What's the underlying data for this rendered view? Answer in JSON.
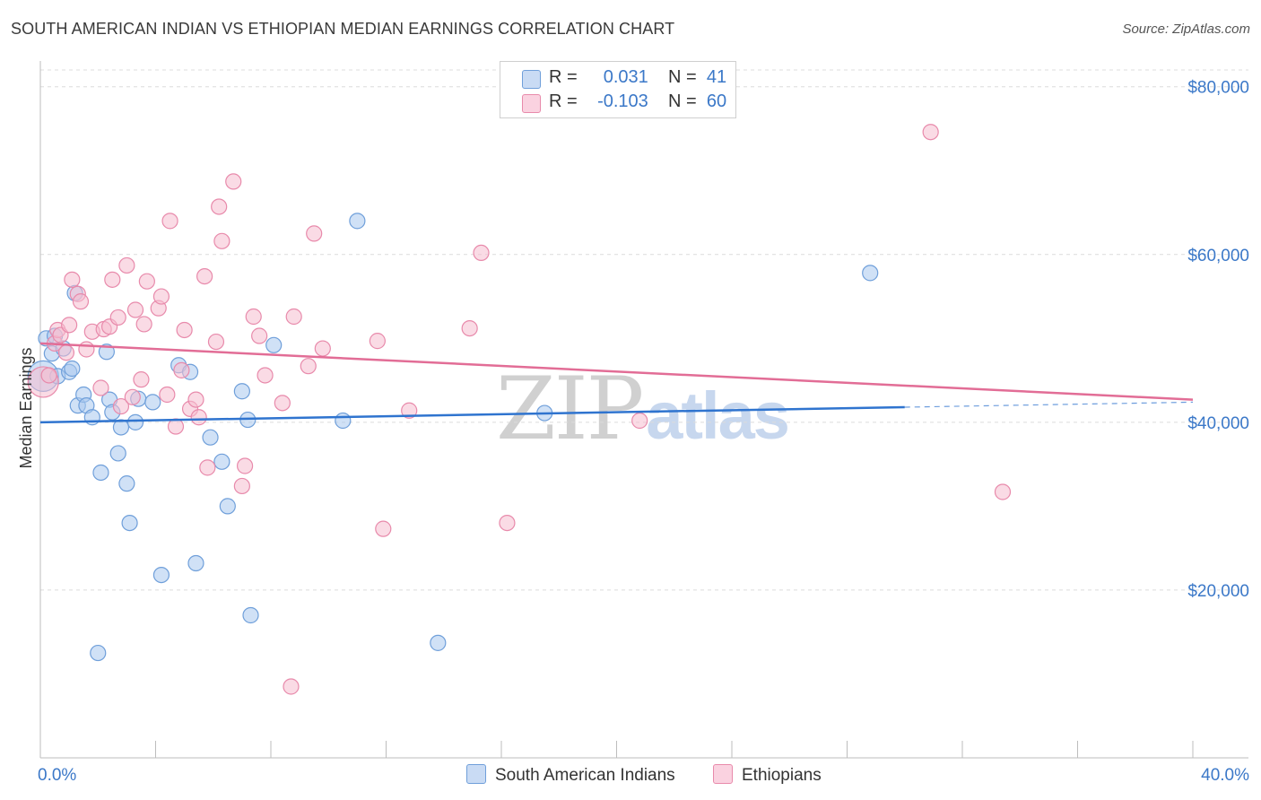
{
  "title": "SOUTH AMERICAN INDIAN VS ETHIOPIAN MEDIAN EARNINGS CORRELATION CHART",
  "source": "Source: ZipAtlas.com",
  "watermark": {
    "zip": "ZIP",
    "atlas": "atlas"
  },
  "legend": {
    "rows": [
      {
        "r_label": "R =",
        "r_value": "0.031",
        "n_label": "N =",
        "n_value": "41"
      },
      {
        "r_label": "R =",
        "r_value": "-0.103",
        "n_label": "N =",
        "n_value": "60"
      }
    ]
  },
  "colors": {
    "blue_fill": "#a9c8ee",
    "blue_stroke": "#6f9fda",
    "blue_line": "#2f74cf",
    "pink_fill": "#f6bdd0",
    "pink_stroke": "#e88aab",
    "pink_line": "#e26d96",
    "tick_text": "#3b78c8",
    "grid": "#dcdcdc"
  },
  "chart_data": {
    "type": "scatter",
    "title": "SOUTH AMERICAN INDIAN VS ETHIOPIAN MEDIAN EARNINGS CORRELATION CHART",
    "xlabel": "",
    "ylabel": "Median Earnings",
    "xlim": [
      0,
      40
    ],
    "ylim": [
      0,
      82000
    ],
    "x_tick_labels": [
      "0.0%",
      "40.0%"
    ],
    "y_ticks": [
      20000,
      40000,
      60000,
      80000
    ],
    "y_tick_labels": [
      "$20,000",
      "$40,000",
      "$60,000",
      "$80,000"
    ],
    "series": [
      {
        "name": "South American Indians",
        "color": "#a9c8ee",
        "R": 0.031,
        "N": 41,
        "points": [
          [
            0.1,
            45500
          ],
          [
            0.2,
            50000
          ],
          [
            0.4,
            48200
          ],
          [
            0.5,
            50300
          ],
          [
            0.6,
            45500
          ],
          [
            0.8,
            48800
          ],
          [
            1.0,
            46000
          ],
          [
            1.1,
            46400
          ],
          [
            1.2,
            55400
          ],
          [
            1.3,
            42000
          ],
          [
            1.5,
            43300
          ],
          [
            1.6,
            42000
          ],
          [
            1.8,
            40600
          ],
          [
            2.1,
            34000
          ],
          [
            2.3,
            48400
          ],
          [
            2.4,
            42700
          ],
          [
            2.5,
            41200
          ],
          [
            2.7,
            36300
          ],
          [
            2.8,
            39400
          ],
          [
            3.0,
            32700
          ],
          [
            3.1,
            28000
          ],
          [
            3.3,
            40000
          ],
          [
            3.4,
            42800
          ],
          [
            3.9,
            42400
          ],
          [
            4.2,
            21800
          ],
          [
            4.8,
            46800
          ],
          [
            5.2,
            46000
          ],
          [
            5.4,
            23200
          ],
          [
            5.9,
            38200
          ],
          [
            6.3,
            35300
          ],
          [
            6.5,
            30000
          ],
          [
            7.0,
            43700
          ],
          [
            7.2,
            40300
          ],
          [
            7.3,
            17000
          ],
          [
            8.1,
            49200
          ],
          [
            10.5,
            40200
          ],
          [
            11.0,
            64000
          ],
          [
            13.8,
            13700
          ],
          [
            17.5,
            41100
          ],
          [
            28.8,
            57800
          ],
          [
            2.0,
            12500
          ]
        ]
      },
      {
        "name": "Ethiopians",
        "color": "#f6bdd0",
        "R": -0.103,
        "N": 60,
        "points": [
          [
            0.1,
            44800
          ],
          [
            0.3,
            45600
          ],
          [
            0.5,
            49400
          ],
          [
            0.6,
            51000
          ],
          [
            0.7,
            50400
          ],
          [
            0.9,
            48300
          ],
          [
            1.0,
            51600
          ],
          [
            1.1,
            57000
          ],
          [
            1.3,
            55300
          ],
          [
            1.4,
            54400
          ],
          [
            1.6,
            48700
          ],
          [
            1.8,
            50800
          ],
          [
            2.1,
            44100
          ],
          [
            2.2,
            51100
          ],
          [
            2.4,
            51400
          ],
          [
            2.5,
            57000
          ],
          [
            2.7,
            52500
          ],
          [
            2.8,
            41900
          ],
          [
            3.0,
            58700
          ],
          [
            3.2,
            43000
          ],
          [
            3.3,
            53400
          ],
          [
            3.5,
            45100
          ],
          [
            3.6,
            51700
          ],
          [
            3.7,
            56800
          ],
          [
            4.1,
            53600
          ],
          [
            4.2,
            55000
          ],
          [
            4.4,
            43300
          ],
          [
            4.5,
            64000
          ],
          [
            4.7,
            39500
          ],
          [
            4.9,
            46200
          ],
          [
            5.0,
            51000
          ],
          [
            5.2,
            41600
          ],
          [
            5.4,
            42700
          ],
          [
            5.5,
            40600
          ],
          [
            5.7,
            57400
          ],
          [
            5.8,
            34600
          ],
          [
            6.1,
            49600
          ],
          [
            6.2,
            65700
          ],
          [
            6.3,
            61600
          ],
          [
            6.7,
            68700
          ],
          [
            7.0,
            32400
          ],
          [
            7.1,
            34800
          ],
          [
            7.4,
            52600
          ],
          [
            7.6,
            50300
          ],
          [
            7.8,
            45600
          ],
          [
            8.4,
            42300
          ],
          [
            8.7,
            8500
          ],
          [
            8.8,
            52600
          ],
          [
            9.3,
            46700
          ],
          [
            9.5,
            62500
          ],
          [
            9.8,
            48800
          ],
          [
            11.7,
            49700
          ],
          [
            11.9,
            27300
          ],
          [
            12.8,
            41400
          ],
          [
            14.9,
            51200
          ],
          [
            15.3,
            60200
          ],
          [
            16.2,
            28000
          ],
          [
            20.8,
            40200
          ],
          [
            30.9,
            74600
          ],
          [
            33.4,
            31700
          ]
        ]
      }
    ],
    "trend_lines": [
      {
        "series": "South American Indians",
        "x": [
          0,
          30.0,
          40
        ],
        "y": [
          40000,
          41800,
          42400
        ]
      },
      {
        "series": "Ethiopians",
        "x": [
          0,
          40
        ],
        "y": [
          49400,
          42700
        ]
      }
    ],
    "bottom_legend": [
      "South American Indians",
      "Ethiopians"
    ]
  }
}
